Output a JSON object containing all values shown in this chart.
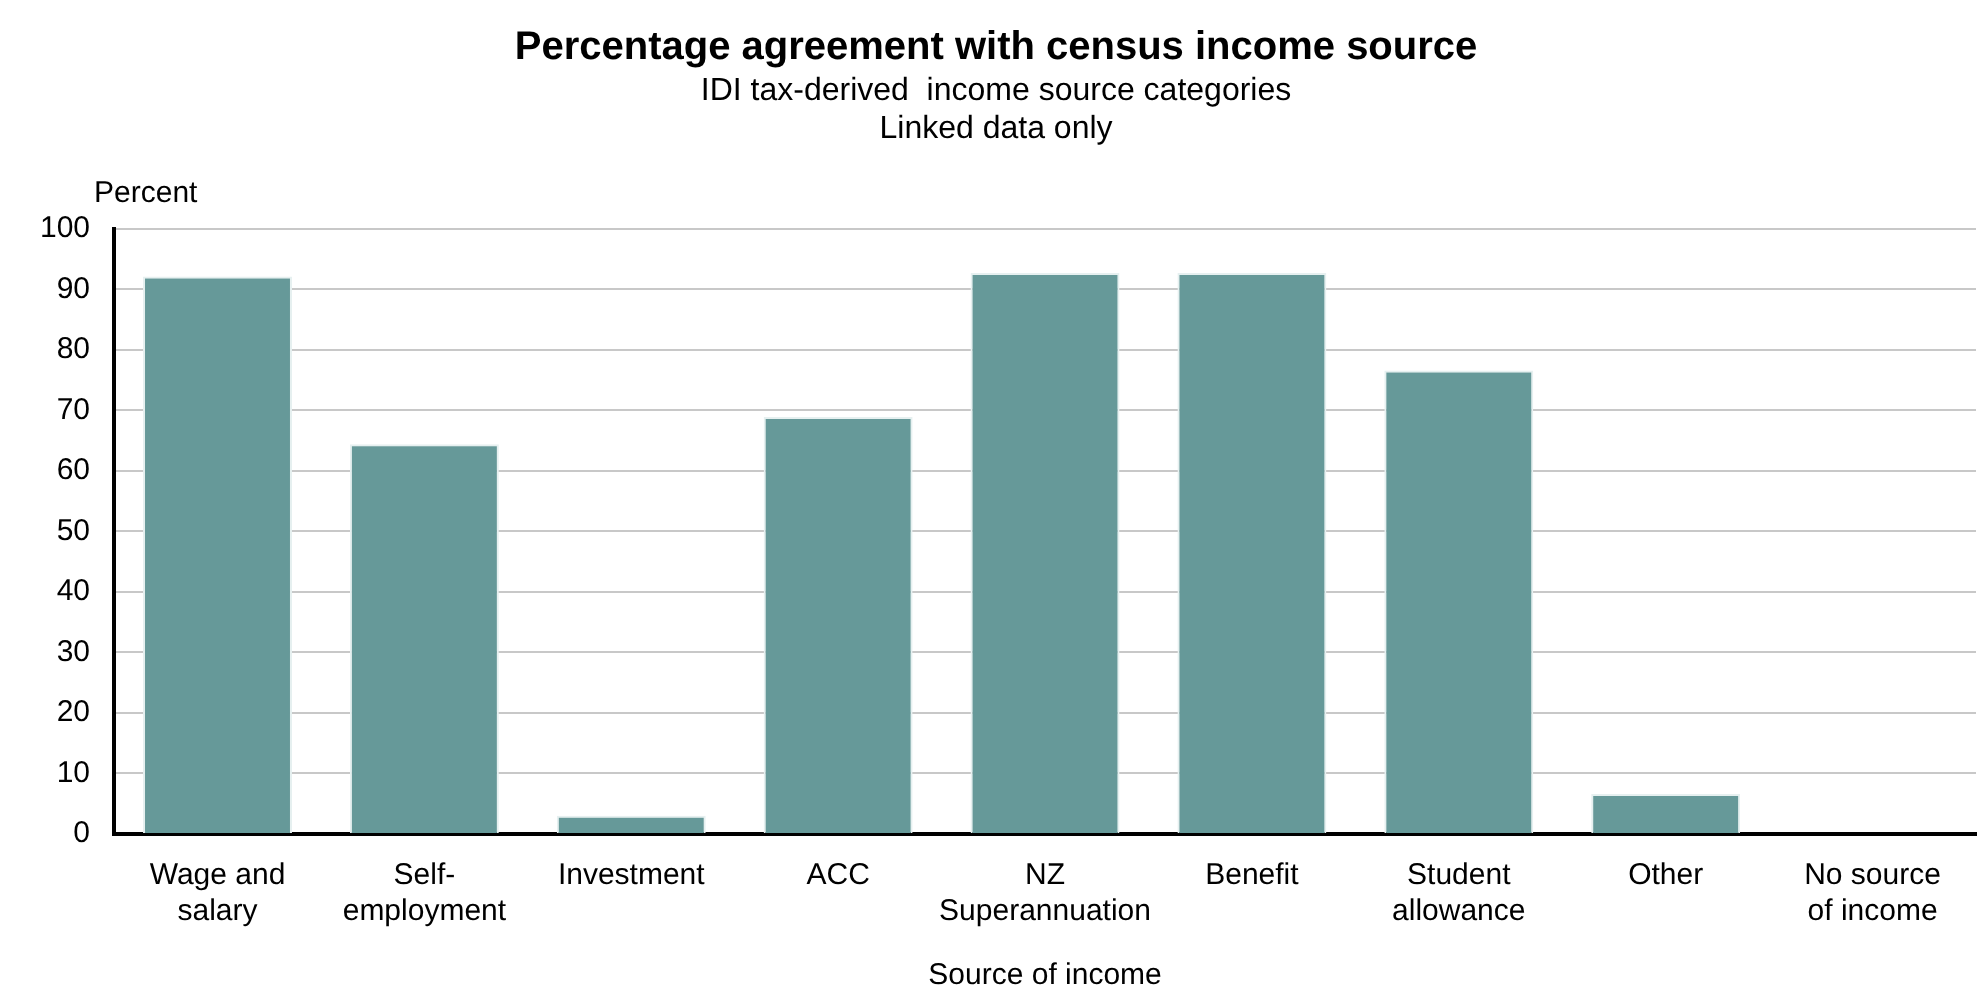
{
  "chart_data": {
    "type": "bar",
    "title": "Percentage agreement with census income source",
    "subtitle": "IDI tax-derived  income source categories\nLinked data only",
    "xlabel": "Source of income",
    "ylabel": "Percent",
    "categories": [
      "Wage and salary",
      "Self-employment",
      "Investment",
      "ACC",
      "NZ Superannuation",
      "Benefit",
      "Student allowance",
      "Other",
      "No source of income"
    ],
    "values": [
      92.1,
      64.4,
      3.0,
      68.9,
      92.7,
      92.7,
      76.6,
      6.6,
      0
    ],
    "color": "#669999",
    "ylim": [
      0,
      100
    ],
    "yticks": [
      0,
      10,
      20,
      30,
      40,
      50,
      60,
      70,
      80,
      90,
      100
    ],
    "grid": "y",
    "legend": false
  }
}
